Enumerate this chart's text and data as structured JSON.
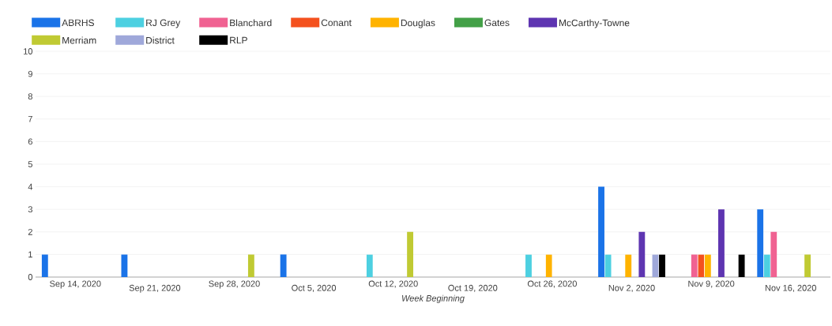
{
  "chart_data": {
    "type": "bar",
    "xlabel": "Week Beginning",
    "categories": [
      "Sep 14, 2020",
      "Sep 21, 2020",
      "Sep 28, 2020",
      "Oct 5, 2020",
      "Oct 12, 2020",
      "Oct 19, 2020",
      "Oct 26, 2020",
      "Nov 2, 2020",
      "Nov 9, 2020",
      "Nov 16, 2020"
    ],
    "series": [
      {
        "name": "ABRHS",
        "color": "#1a73e8",
        "values": [
          1,
          1,
          null,
          1,
          null,
          null,
          null,
          4,
          null,
          3
        ]
      },
      {
        "name": "RJ Grey",
        "color": "#4dd0e1",
        "values": [
          null,
          null,
          null,
          null,
          1,
          null,
          1,
          1,
          null,
          1
        ]
      },
      {
        "name": "Blanchard",
        "color": "#f06292",
        "values": [
          null,
          null,
          null,
          null,
          null,
          null,
          null,
          null,
          1,
          2
        ]
      },
      {
        "name": "Conant",
        "color": "#f4511e",
        "values": [
          null,
          null,
          null,
          null,
          null,
          null,
          null,
          null,
          1,
          null
        ]
      },
      {
        "name": "Douglas",
        "color": "#ffb300",
        "values": [
          null,
          null,
          null,
          null,
          null,
          null,
          1,
          1,
          1,
          null
        ]
      },
      {
        "name": "Gates",
        "color": "#43a047",
        "values": [
          null,
          null,
          null,
          null,
          null,
          null,
          null,
          null,
          null,
          null
        ]
      },
      {
        "name": "McCarthy-Towne",
        "color": "#5e35b1",
        "values": [
          null,
          null,
          null,
          null,
          null,
          null,
          null,
          2,
          3,
          null
        ]
      },
      {
        "name": "Merriam",
        "color": "#c0ca33",
        "values": [
          null,
          null,
          1,
          null,
          2,
          null,
          null,
          null,
          null,
          1
        ]
      },
      {
        "name": "District",
        "color": "#9fa8da",
        "values": [
          null,
          null,
          null,
          null,
          null,
          null,
          null,
          1,
          null,
          null
        ]
      },
      {
        "name": "RLP",
        "color": "#000000",
        "values": [
          null,
          null,
          null,
          null,
          null,
          null,
          null,
          1,
          1,
          null
        ]
      }
    ],
    "ylim": [
      0,
      10
    ],
    "yticks": [
      0,
      1,
      2,
      3,
      4,
      5,
      6,
      7,
      8,
      9,
      10
    ],
    "grid": "y",
    "legend": "top left"
  }
}
